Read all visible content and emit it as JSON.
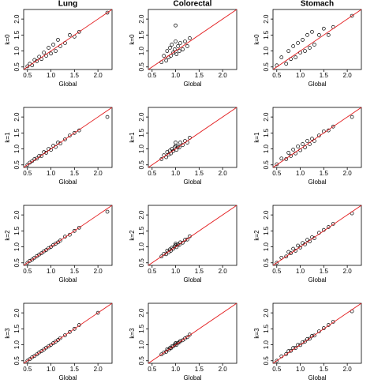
{
  "chart_data": [
    {
      "type": "scatter",
      "title": "Lung",
      "xlabel": "Global",
      "ylabel": "k=0",
      "x": [
        0.5,
        0.55,
        0.6,
        0.65,
        0.7,
        0.75,
        0.8,
        0.85,
        0.9,
        0.95,
        1.0,
        1.05,
        1.1,
        1.15,
        1.2,
        1.3,
        1.4,
        1.5,
        1.6,
        2.2
      ],
      "y": [
        0.52,
        0.6,
        0.55,
        0.72,
        0.68,
        0.82,
        0.75,
        0.95,
        0.85,
        1.1,
        0.92,
        1.2,
        1.0,
        1.35,
        1.15,
        1.25,
        1.5,
        1.45,
        1.6,
        2.2
      ],
      "xlim": [
        0.42,
        2.3
      ],
      "ylim": [
        0.42,
        2.3
      ],
      "xticks": [
        0.5,
        {
          "value": 1,
          "label": "1.0"
        },
        1.5,
        {
          "value": 2,
          "label": "2.0"
        }
      ],
      "yticks": [
        0.5,
        {
          "value": 1,
          "label": "1.0"
        },
        1.5,
        {
          "value": 2,
          "label": "2.0"
        }
      ],
      "point_color": "#000000",
      "diagonal_color": "#e31a1c"
    },
    {
      "type": "scatter",
      "title": "Colorectal",
      "xlabel": "Global",
      "ylabel": "k=0",
      "x": [
        0.7,
        0.75,
        0.8,
        0.82,
        0.85,
        0.88,
        0.9,
        0.92,
        0.95,
        0.98,
        1.0,
        1.02,
        1.05,
        1.08,
        1.1,
        1.15,
        1.2,
        1.25,
        1.3,
        1.0
      ],
      "y": [
        0.65,
        0.85,
        0.7,
        1.0,
        0.8,
        1.1,
        0.85,
        1.2,
        0.95,
        1.05,
        1.3,
        0.9,
        1.15,
        1.0,
        1.25,
        1.05,
        1.3,
        1.15,
        1.4,
        1.8
      ],
      "xlim": [
        0.42,
        2.3
      ],
      "ylim": [
        0.42,
        2.3
      ],
      "xticks": [
        0.5,
        {
          "value": 1,
          "label": "1.0"
        },
        1.5,
        {
          "value": 2,
          "label": "2.0"
        }
      ],
      "yticks": [
        0.5,
        {
          "value": 1,
          "label": "1.0"
        },
        1.5,
        {
          "value": 2,
          "label": "2.0"
        }
      ],
      "point_color": "#000000",
      "diagonal_color": "#e31a1c"
    },
    {
      "type": "scatter",
      "title": "Stomach",
      "xlabel": "Global",
      "ylabel": "k=0",
      "x": [
        0.5,
        0.6,
        0.7,
        0.75,
        0.8,
        0.85,
        0.9,
        0.95,
        1.0,
        1.05,
        1.1,
        1.15,
        1.2,
        1.25,
        1.3,
        1.4,
        1.5,
        1.6,
        1.7,
        2.1
      ],
      "y": [
        0.55,
        0.8,
        0.6,
        1.0,
        0.75,
        1.15,
        0.8,
        1.25,
        0.95,
        1.35,
        1.0,
        1.5,
        1.1,
        1.6,
        1.2,
        1.5,
        1.7,
        1.5,
        1.75,
        2.1
      ],
      "xlim": [
        0.42,
        2.3
      ],
      "ylim": [
        0.42,
        2.3
      ],
      "xticks": [
        0.5,
        {
          "value": 1,
          "label": "1.0"
        },
        1.5,
        {
          "value": 2,
          "label": "2.0"
        }
      ],
      "yticks": [
        0.5,
        {
          "value": 1,
          "label": "1.0"
        },
        1.5,
        {
          "value": 2,
          "label": "2.0"
        }
      ],
      "point_color": "#000000",
      "diagonal_color": "#e31a1c"
    },
    {
      "type": "scatter",
      "xlabel": "Global",
      "ylabel": "k=1",
      "x": [
        0.5,
        0.55,
        0.6,
        0.65,
        0.7,
        0.75,
        0.8,
        0.85,
        0.9,
        0.95,
        1.0,
        1.05,
        1.1,
        1.15,
        1.2,
        1.3,
        1.4,
        1.5,
        1.6,
        2.2
      ],
      "y": [
        0.5,
        0.57,
        0.62,
        0.68,
        0.7,
        0.78,
        0.78,
        0.9,
        0.88,
        1.0,
        0.97,
        1.1,
        1.06,
        1.2,
        1.17,
        1.3,
        1.42,
        1.5,
        1.58,
        2.0
      ],
      "xlim": [
        0.42,
        2.3
      ],
      "ylim": [
        0.42,
        2.3
      ],
      "xticks": [
        0.5,
        {
          "value": 1,
          "label": "1.0"
        },
        1.5,
        {
          "value": 2,
          "label": "2.0"
        }
      ],
      "yticks": [
        0.5,
        {
          "value": 1,
          "label": "1.0"
        },
        1.5,
        {
          "value": 2,
          "label": "2.0"
        }
      ],
      "point_color": "#000000",
      "diagonal_color": "#e31a1c"
    },
    {
      "type": "scatter",
      "xlabel": "Global",
      "ylabel": "k=1",
      "x": [
        0.7,
        0.75,
        0.8,
        0.82,
        0.85,
        0.88,
        0.9,
        0.92,
        0.95,
        0.98,
        1.0,
        1.02,
        1.05,
        1.08,
        1.1,
        1.15,
        1.2,
        1.25,
        1.3,
        1.0
      ],
      "y": [
        0.68,
        0.8,
        0.74,
        0.9,
        0.82,
        0.95,
        0.86,
        1.0,
        0.93,
        1.05,
        1.1,
        0.97,
        1.08,
        1.05,
        1.2,
        1.12,
        1.25,
        1.2,
        1.35,
        1.2
      ],
      "xlim": [
        0.42,
        2.3
      ],
      "ylim": [
        0.42,
        2.3
      ],
      "xticks": [
        0.5,
        {
          "value": 1,
          "label": "1.0"
        },
        1.5,
        {
          "value": 2,
          "label": "2.0"
        }
      ],
      "yticks": [
        0.5,
        {
          "value": 1,
          "label": "1.0"
        },
        1.5,
        {
          "value": 2,
          "label": "2.0"
        }
      ],
      "point_color": "#000000",
      "diagonal_color": "#e31a1c"
    },
    {
      "type": "scatter",
      "xlabel": "Global",
      "ylabel": "k=1",
      "x": [
        0.5,
        0.6,
        0.7,
        0.75,
        0.8,
        0.85,
        0.9,
        0.95,
        1.0,
        1.05,
        1.1,
        1.15,
        1.2,
        1.25,
        1.3,
        1.4,
        1.5,
        1.6,
        1.7,
        2.1
      ],
      "y": [
        0.52,
        0.7,
        0.68,
        0.88,
        0.78,
        0.98,
        0.86,
        1.08,
        0.96,
        1.15,
        1.05,
        1.25,
        1.15,
        1.32,
        1.25,
        1.42,
        1.55,
        1.58,
        1.7,
        2.0
      ],
      "xlim": [
        0.42,
        2.3
      ],
      "ylim": [
        0.42,
        2.3
      ],
      "xticks": [
        0.5,
        {
          "value": 1,
          "label": "1.0"
        },
        1.5,
        {
          "value": 2,
          "label": "2.0"
        }
      ],
      "yticks": [
        0.5,
        {
          "value": 1,
          "label": "1.0"
        },
        1.5,
        {
          "value": 2,
          "label": "2.0"
        }
      ],
      "point_color": "#000000",
      "diagonal_color": "#e31a1c"
    },
    {
      "type": "scatter",
      "xlabel": "Global",
      "ylabel": "k=2",
      "x": [
        0.5,
        0.55,
        0.6,
        0.65,
        0.7,
        0.75,
        0.8,
        0.85,
        0.9,
        0.95,
        1.0,
        1.05,
        1.1,
        1.15,
        1.2,
        1.3,
        1.4,
        1.5,
        1.6,
        2.2
      ],
      "y": [
        0.5,
        0.56,
        0.6,
        0.66,
        0.71,
        0.76,
        0.8,
        0.86,
        0.9,
        0.96,
        1.0,
        1.06,
        1.1,
        1.14,
        1.2,
        1.32,
        1.38,
        1.5,
        1.6,
        2.1
      ],
      "xlim": [
        0.42,
        2.3
      ],
      "ylim": [
        0.42,
        2.3
      ],
      "xticks": [
        0.5,
        {
          "value": 1,
          "label": "1.0"
        },
        1.5,
        {
          "value": 2,
          "label": "2.0"
        }
      ],
      "yticks": [
        0.5,
        {
          "value": 1,
          "label": "1.0"
        },
        1.5,
        {
          "value": 2,
          "label": "2.0"
        }
      ],
      "point_color": "#000000",
      "diagonal_color": "#e31a1c"
    },
    {
      "type": "scatter",
      "xlabel": "Global",
      "ylabel": "k=2",
      "x": [
        0.7,
        0.75,
        0.8,
        0.82,
        0.85,
        0.88,
        0.9,
        0.92,
        0.95,
        0.98,
        1.0,
        1.02,
        1.05,
        1.08,
        1.1,
        1.15,
        1.2,
        1.25,
        1.3,
        1.0
      ],
      "y": [
        0.7,
        0.78,
        0.77,
        0.88,
        0.83,
        0.92,
        0.88,
        0.97,
        0.94,
        1.02,
        1.05,
        0.99,
        1.08,
        1.06,
        1.14,
        1.13,
        1.22,
        1.23,
        1.33,
        1.1
      ],
      "xlim": [
        0.42,
        2.3
      ],
      "ylim": [
        0.42,
        2.3
      ],
      "xticks": [
        0.5,
        {
          "value": 1,
          "label": "1.0"
        },
        1.5,
        {
          "value": 2,
          "label": "2.0"
        }
      ],
      "yticks": [
        0.5,
        {
          "value": 1,
          "label": "1.0"
        },
        1.5,
        {
          "value": 2,
          "label": "2.0"
        }
      ],
      "point_color": "#000000",
      "diagonal_color": "#e31a1c"
    },
    {
      "type": "scatter",
      "xlabel": "Global",
      "ylabel": "k=2",
      "x": [
        0.5,
        0.6,
        0.7,
        0.75,
        0.8,
        0.85,
        0.9,
        0.95,
        1.0,
        1.05,
        1.1,
        1.15,
        1.2,
        1.25,
        1.3,
        1.4,
        1.5,
        1.6,
        1.7,
        2.1
      ],
      "y": [
        0.5,
        0.66,
        0.7,
        0.84,
        0.8,
        0.94,
        0.88,
        1.04,
        0.98,
        1.12,
        1.08,
        1.22,
        1.17,
        1.3,
        1.27,
        1.44,
        1.53,
        1.62,
        1.72,
        2.05
      ],
      "xlim": [
        0.42,
        2.3
      ],
      "ylim": [
        0.42,
        2.3
      ],
      "xticks": [
        0.5,
        {
          "value": 1,
          "label": "1.0"
        },
        1.5,
        {
          "value": 2,
          "label": "2.0"
        }
      ],
      "yticks": [
        0.5,
        {
          "value": 1,
          "label": "1.0"
        },
        1.5,
        {
          "value": 2,
          "label": "2.0"
        }
      ],
      "point_color": "#000000",
      "diagonal_color": "#e31a1c"
    },
    {
      "type": "scatter",
      "xlabel": "Global",
      "ylabel": "k=3",
      "x": [
        0.5,
        0.55,
        0.6,
        0.65,
        0.7,
        0.75,
        0.8,
        0.85,
        0.9,
        0.95,
        1.0,
        1.05,
        1.1,
        1.15,
        1.2,
        1.3,
        1.4,
        1.5,
        1.6,
        2.0
      ],
      "y": [
        0.5,
        0.55,
        0.61,
        0.65,
        0.7,
        0.76,
        0.8,
        0.85,
        0.91,
        0.95,
        1.0,
        1.05,
        1.1,
        1.15,
        1.21,
        1.3,
        1.4,
        1.5,
        1.62,
        2.0
      ],
      "xlim": [
        0.42,
        2.3
      ],
      "ylim": [
        0.42,
        2.3
      ],
      "xticks": [
        0.5,
        {
          "value": 1,
          "label": "1.0"
        },
        1.5,
        {
          "value": 2,
          "label": "2.0"
        }
      ],
      "yticks": [
        0.5,
        {
          "value": 1,
          "label": "1.0"
        },
        1.5,
        {
          "value": 2,
          "label": "2.0"
        }
      ],
      "point_color": "#000000",
      "diagonal_color": "#e31a1c"
    },
    {
      "type": "scatter",
      "xlabel": "Global",
      "ylabel": "k=3",
      "x": [
        0.7,
        0.75,
        0.8,
        0.82,
        0.85,
        0.88,
        0.9,
        0.92,
        0.95,
        0.98,
        1.0,
        1.02,
        1.05,
        1.08,
        1.1,
        1.15,
        1.2,
        1.25,
        1.3,
        1.0
      ],
      "y": [
        0.7,
        0.76,
        0.78,
        0.86,
        0.84,
        0.9,
        0.89,
        0.95,
        0.95,
        1.0,
        1.04,
        1.0,
        1.06,
        1.08,
        1.12,
        1.14,
        1.2,
        1.24,
        1.32,
        1.05
      ],
      "xlim": [
        0.42,
        2.3
      ],
      "ylim": [
        0.42,
        2.3
      ],
      "xticks": [
        0.5,
        {
          "value": 1,
          "label": "1.0"
        },
        1.5,
        {
          "value": 2,
          "label": "2.0"
        }
      ],
      "yticks": [
        0.5,
        {
          "value": 1,
          "label": "1.0"
        },
        1.5,
        {
          "value": 2,
          "label": "2.0"
        }
      ],
      "point_color": "#000000",
      "diagonal_color": "#e31a1c"
    },
    {
      "type": "scatter",
      "xlabel": "Global",
      "ylabel": "k=3",
      "x": [
        0.5,
        0.6,
        0.7,
        0.75,
        0.8,
        0.85,
        0.9,
        0.95,
        1.0,
        1.05,
        1.1,
        1.15,
        1.2,
        1.25,
        1.3,
        1.4,
        1.5,
        1.6,
        1.7,
        2.1
      ],
      "y": [
        0.5,
        0.64,
        0.71,
        0.8,
        0.81,
        0.9,
        0.9,
        1.0,
        0.99,
        1.08,
        1.1,
        1.18,
        1.19,
        1.28,
        1.29,
        1.42,
        1.52,
        1.62,
        1.72,
        2.05
      ],
      "xlim": [
        0.42,
        2.3
      ],
      "ylim": [
        0.42,
        2.3
      ],
      "xticks": [
        0.5,
        {
          "value": 1,
          "label": "1.0"
        },
        1.5,
        {
          "value": 2,
          "label": "2.0"
        }
      ],
      "yticks": [
        0.5,
        {
          "value": 1,
          "label": "1.0"
        },
        1.5,
        {
          "value": 2,
          "label": "2.0"
        }
      ],
      "point_color": "#000000",
      "diagonal_color": "#e31a1c"
    }
  ]
}
